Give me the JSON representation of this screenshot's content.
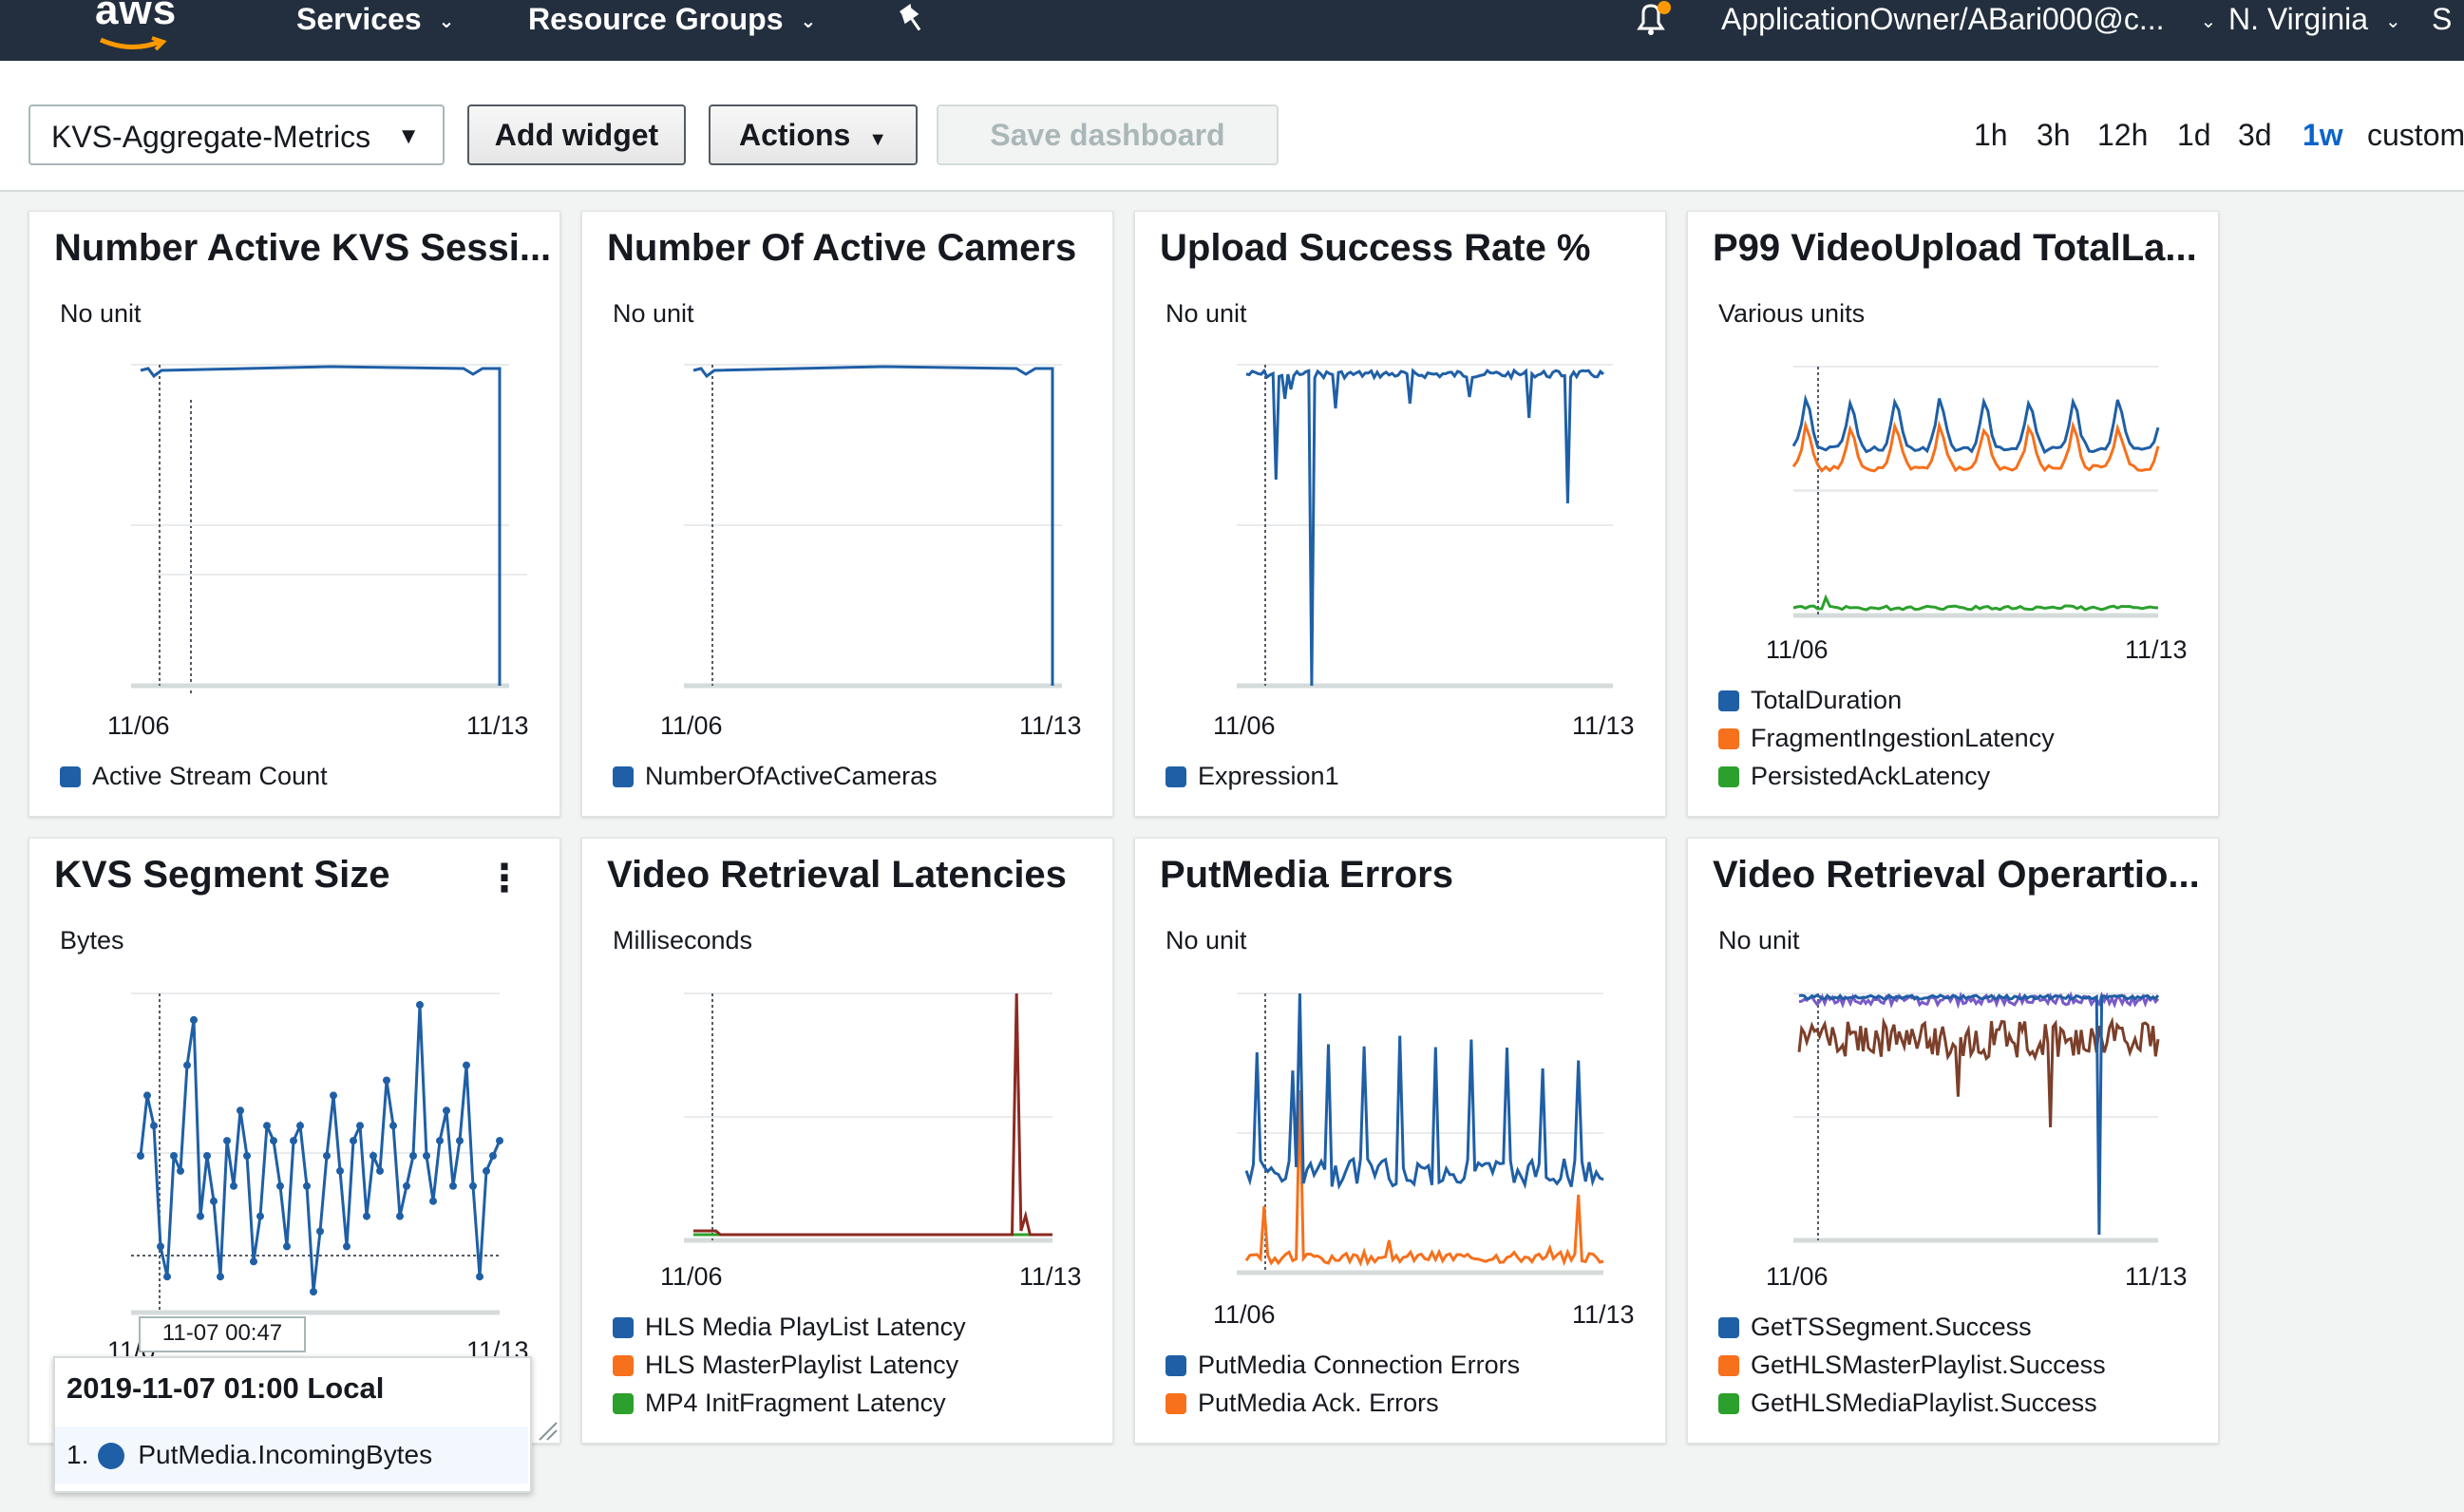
{
  "nav": {
    "logo_text": "aws",
    "services_label": "Services",
    "resource_groups_label": "Resource Groups",
    "account_label": "ApplicationOwner/ABari000@c...",
    "region_label": "N. Virginia",
    "edge_label": "S"
  },
  "toolbar": {
    "dashboard_name": "KVS-Aggregate-Metrics",
    "add_widget_label": "Add widget",
    "actions_label": "Actions",
    "save_label": "Save dashboard",
    "time_ranges": [
      "1h",
      "3h",
      "12h",
      "1d",
      "3d",
      "1w",
      "custom"
    ],
    "active_time_range": "1w"
  },
  "colors": {
    "blue": "#1f5fa6",
    "orange": "#f7701c",
    "green": "#2ca02c",
    "darkred": "#8c2a22",
    "brown": "#7b3f2a",
    "purple": "#7a5bc7"
  },
  "widgets": [
    {
      "title": "Number Active KVS Sessi...",
      "unit": "No unit",
      "x_start": "11/06",
      "x_end": "11/13",
      "legend": [
        {
          "label": "Active Stream Count",
          "color": "#1f5fa6"
        }
      ]
    },
    {
      "title": "Number Of Active Camers",
      "unit": "No unit",
      "x_start": "11/06",
      "x_end": "11/13",
      "legend": [
        {
          "label": "NumberOfActiveCameras",
          "color": "#1f5fa6"
        }
      ]
    },
    {
      "title": "Upload Success Rate %",
      "unit": "No unit",
      "x_start": "11/06",
      "x_end": "11/13",
      "legend": [
        {
          "label": "Expression1",
          "color": "#1f5fa6"
        }
      ]
    },
    {
      "title": "P99 VideoUpload TotalLa...",
      "unit": "Various units",
      "x_start": "11/06",
      "x_end": "11/13",
      "legend": [
        {
          "label": "TotalDuration",
          "color": "#1f5fa6"
        },
        {
          "label": "FragmentIngestionLatency",
          "color": "#f7701c"
        },
        {
          "label": "PersistedAckLatency",
          "color": "#2ca02c"
        }
      ]
    },
    {
      "title": "KVS Segment Size",
      "unit": "Bytes",
      "x_start": "11/0",
      "x_end": "11/13",
      "legend": [],
      "menu_icon": "⋮"
    },
    {
      "title": "Video Retrieval Latencies",
      "unit": "Milliseconds",
      "x_start": "11/06",
      "x_end": "11/13",
      "legend": [
        {
          "label": "HLS Media PlayList Latency",
          "color": "#1f5fa6"
        },
        {
          "label": "HLS MasterPlaylist Latency",
          "color": "#f7701c"
        },
        {
          "label": "MP4 InitFragment Latency",
          "color": "#2ca02c"
        }
      ]
    },
    {
      "title": "PutMedia Errors",
      "unit": "No unit",
      "x_start": "11/06",
      "x_end": "11/13",
      "legend": [
        {
          "label": "PutMedia Connection Errors",
          "color": "#1f5fa6"
        },
        {
          "label": "PutMedia Ack. Errors",
          "color": "#f7701c"
        }
      ]
    },
    {
      "title": "Video Retrieval Operartio...",
      "unit": "No unit",
      "x_start": "11/06",
      "x_end": "11/13",
      "legend": [
        {
          "label": "GetTSSegment.Success",
          "color": "#1f5fa6"
        },
        {
          "label": "GetHLSMasterPlaylist.Success",
          "color": "#f7701c"
        },
        {
          "label": "GetHLSMediaPlaylist.Success",
          "color": "#2ca02c"
        }
      ]
    }
  ],
  "tooltip": {
    "crosshair_time": "11-07 00:47",
    "title": "2019-11-07 01:00 Local",
    "row_index": "1.",
    "row_label": "PutMedia.IncomingBytes"
  }
}
